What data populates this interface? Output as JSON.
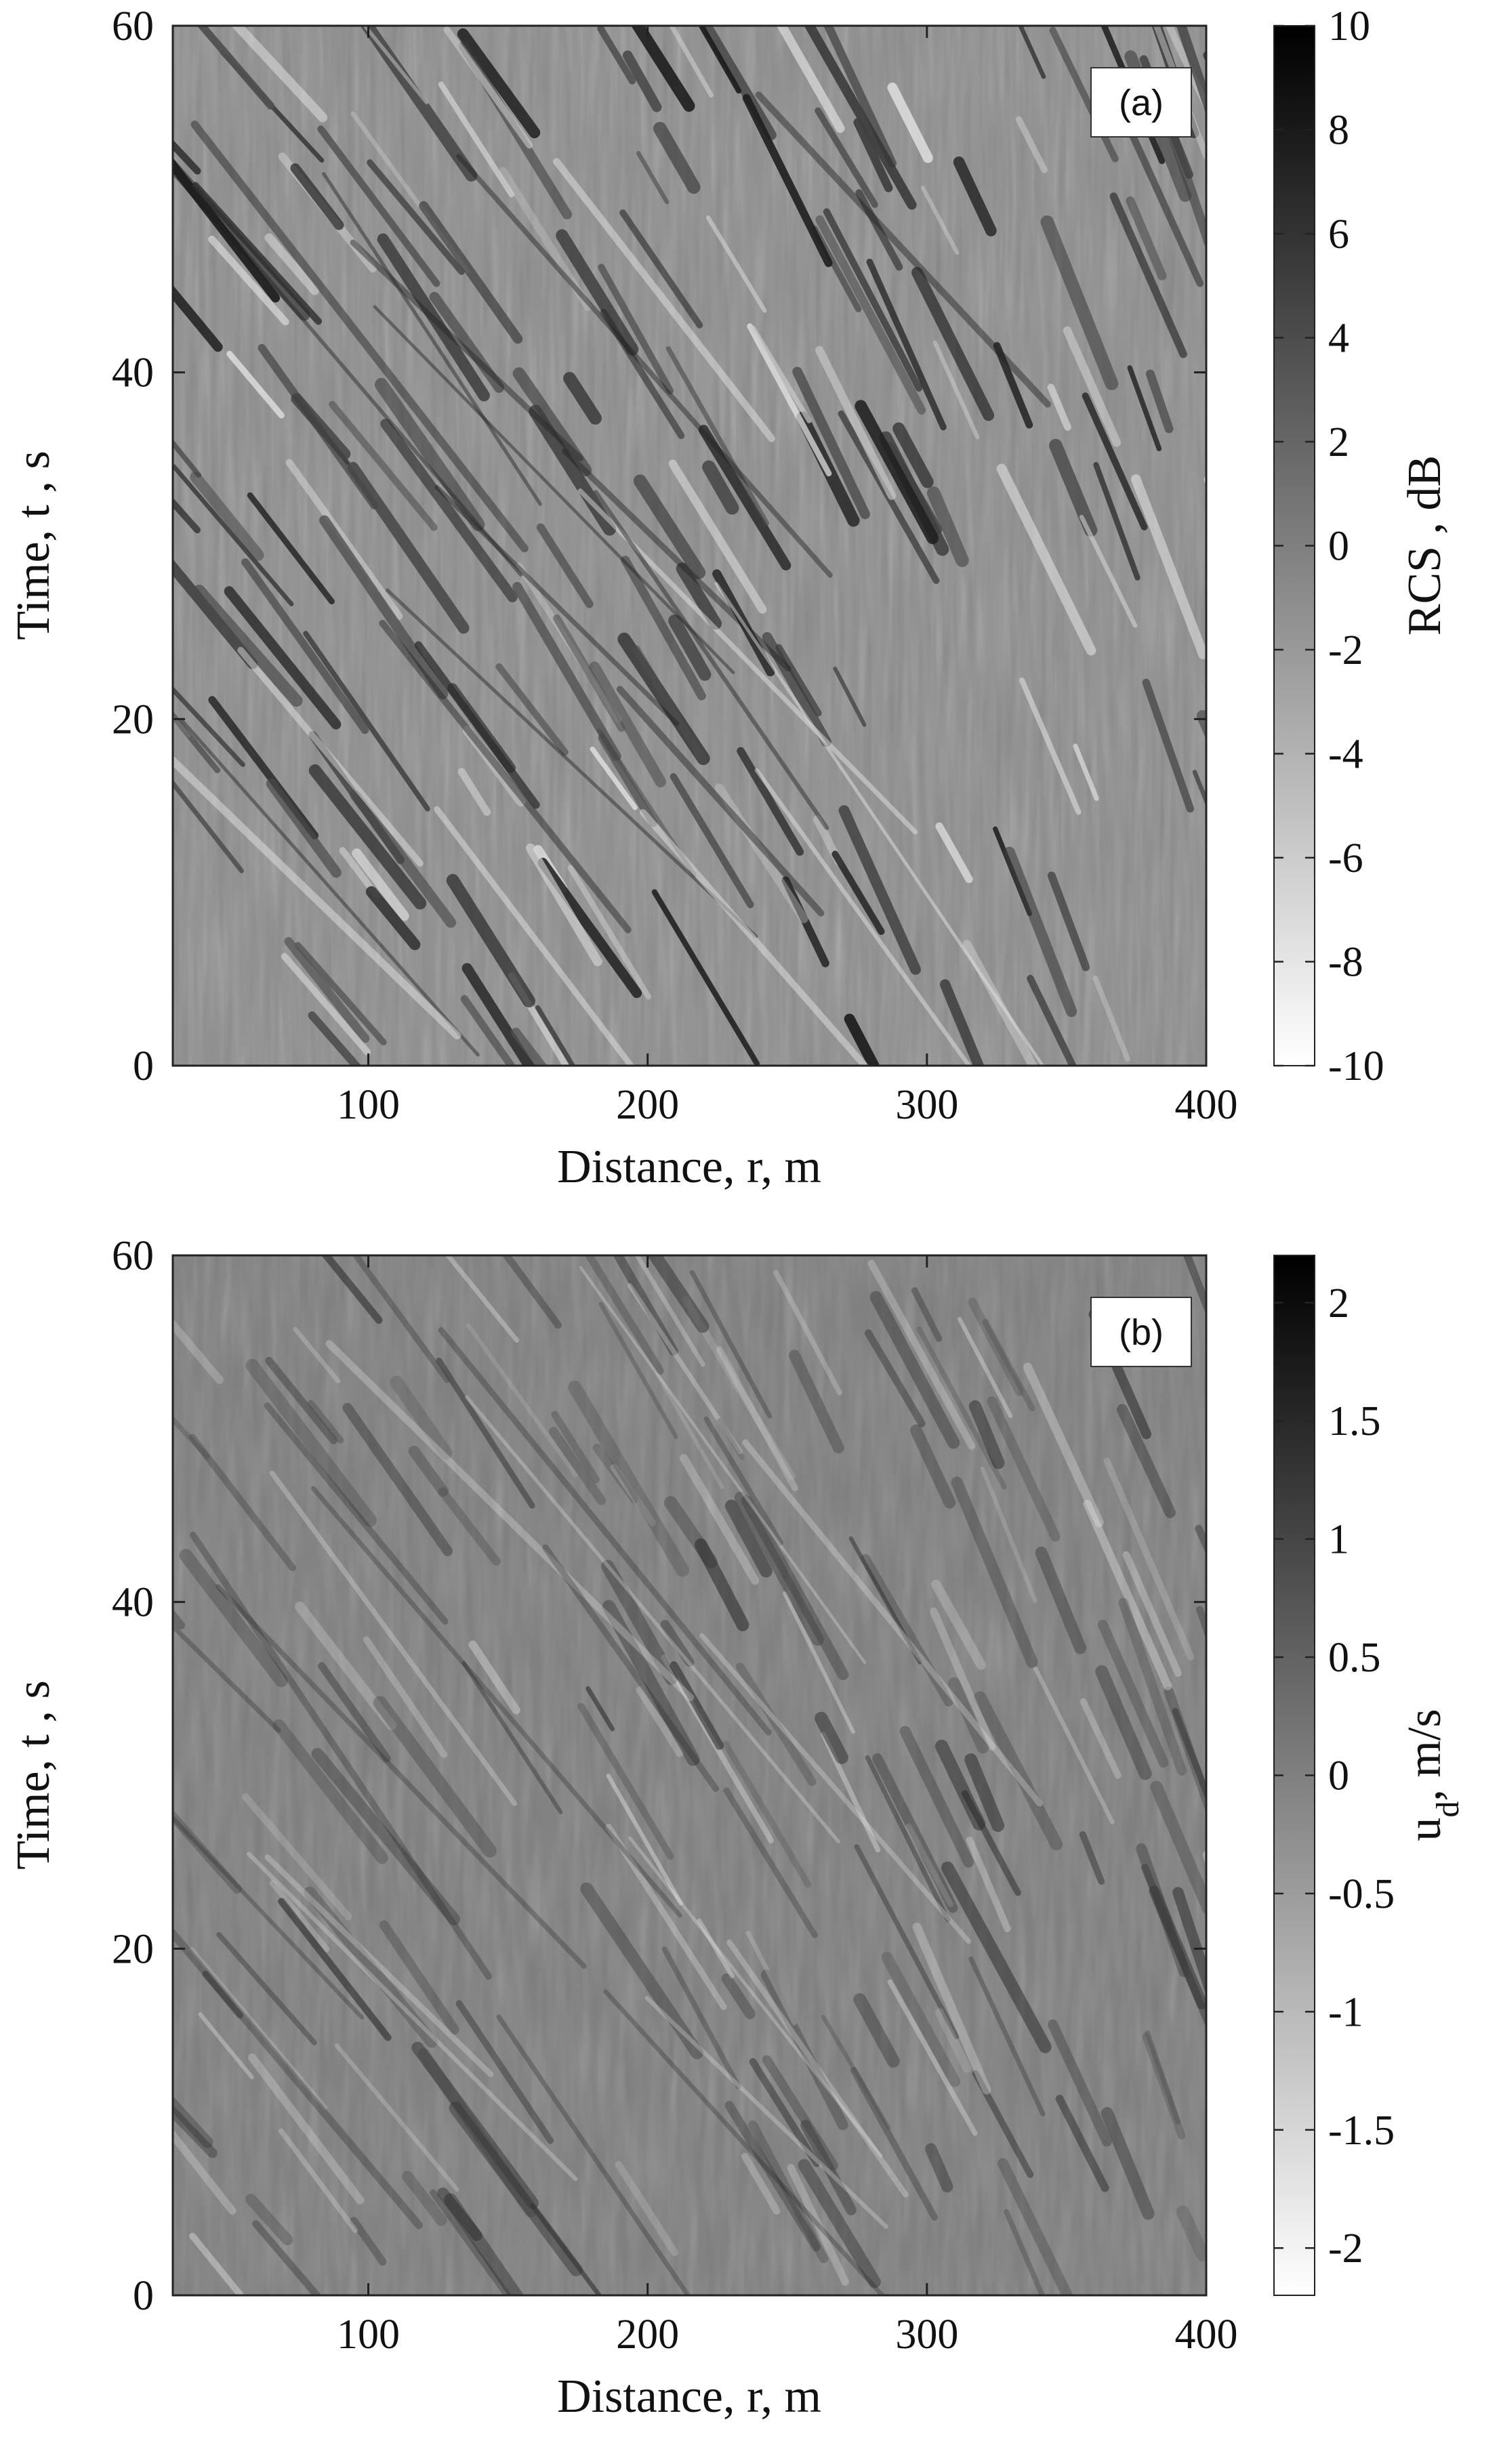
{
  "chart_data": [
    {
      "type": "heatmap",
      "panel_tag": "(a)",
      "xlabel": "Distance, r, m",
      "ylabel": "Time, t , s",
      "xlim": [
        30,
        400
      ],
      "ylim": [
        0,
        60
      ],
      "xticks": [
        100,
        200,
        300,
        400
      ],
      "yticks": [
        0,
        20,
        40,
        60
      ],
      "colorbar": {
        "label": "RCS , dB",
        "label_sub": "",
        "label_tail": "",
        "range": [
          -10,
          10
        ],
        "ticks": [
          10,
          8,
          6,
          4,
          2,
          0,
          -2,
          -4,
          -6,
          -8,
          -10
        ],
        "tick_labels": [
          "10",
          "8",
          "6",
          "4",
          "2",
          "0",
          "-2",
          "-4",
          "-6",
          "-8",
          "-10"
        ],
        "colormap": "gray-reversed"
      },
      "contrast": 1.0,
      "colors": {
        "low": "#ffffff",
        "high": "#000000"
      }
    },
    {
      "type": "heatmap",
      "panel_tag": "(b)",
      "xlabel": "Distance, r, m",
      "ylabel": "Time, t , s",
      "xlim": [
        30,
        400
      ],
      "ylim": [
        0,
        60
      ],
      "xticks": [
        100,
        200,
        300,
        400
      ],
      "yticks": [
        0,
        20,
        40,
        60
      ],
      "colorbar": {
        "label": "u",
        "label_sub": "d",
        "label_tail": ",  m/s",
        "range": [
          -2.2,
          2.2
        ],
        "ticks": [
          2,
          1.5,
          1,
          0.5,
          0,
          -0.5,
          -1,
          -1.5,
          -2
        ],
        "tick_labels": [
          "2",
          "1.5",
          "1",
          "0.5",
          "0",
          "-0.5",
          "-1",
          "-1.5",
          "-2"
        ],
        "colormap": "gray-reversed"
      },
      "contrast": 0.55,
      "colors": {
        "low": "#ffffff",
        "high": "#000000"
      }
    }
  ]
}
